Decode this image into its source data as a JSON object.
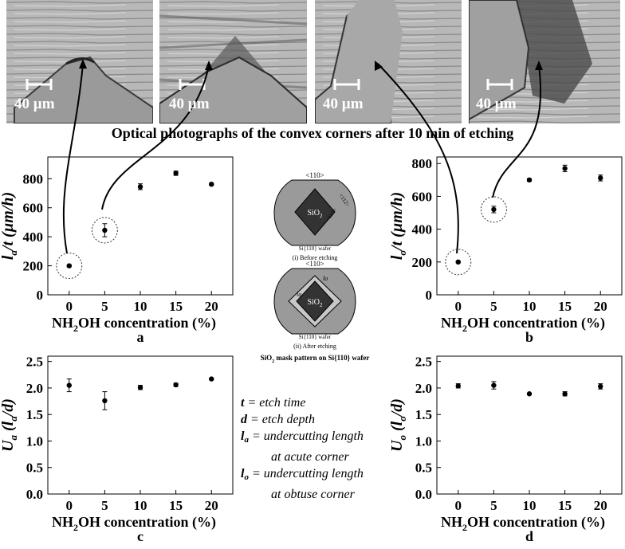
{
  "photos": {
    "scale_label": "40 µm",
    "caption": "Optical photographs of the convex corners after 10 min of etching"
  },
  "colors": {
    "axis": "#000000",
    "marker": "#000000",
    "circle": "#333333"
  },
  "chart_data": [
    {
      "id": "a",
      "type": "scatter",
      "panel_label": "a",
      "xlabel_pre": "NH",
      "xlabel_sub": "2",
      "xlabel_post": "OH concentration (%)",
      "ylabel": "la/t (µm/h)",
      "ylabel_main": "l",
      "ylabel_sub": "a",
      "ylabel_post": "/t (µm/h)",
      "xlim": [
        -3,
        23
      ],
      "ylim": [
        0,
        950
      ],
      "xticks": [
        0,
        5,
        10,
        15,
        20
      ],
      "xtick_labels": [
        "0",
        "5",
        "10",
        "15",
        "20"
      ],
      "yticks": [
        0,
        200,
        400,
        600,
        800
      ],
      "ytick_labels": [
        "0",
        "200",
        "400",
        "600",
        "800"
      ],
      "x": [
        0,
        5,
        10,
        15,
        20
      ],
      "y": [
        200,
        445,
        745,
        838,
        762
      ],
      "err": [
        8,
        45,
        20,
        15,
        8
      ],
      "highlight": [
        0,
        5
      ]
    },
    {
      "id": "b",
      "type": "scatter",
      "panel_label": "b",
      "xlabel_pre": "NH",
      "xlabel_sub": "2",
      "xlabel_post": "OH concentration (%)",
      "ylabel": "lo/t (µm/h)",
      "ylabel_main": "l",
      "ylabel_sub": "o",
      "ylabel_post": "/t (µm/h)",
      "xlim": [
        -3,
        23
      ],
      "ylim": [
        0,
        840
      ],
      "xticks": [
        0,
        5,
        10,
        15,
        20
      ],
      "xtick_labels": [
        "0",
        "5",
        "10",
        "15",
        "20"
      ],
      "yticks": [
        0,
        200,
        400,
        600,
        800
      ],
      "ytick_labels": [
        "0",
        "200",
        "400",
        "600",
        "800"
      ],
      "x": [
        0,
        5,
        10,
        15,
        20
      ],
      "y": [
        200,
        520,
        700,
        770,
        712
      ],
      "err": [
        6,
        20,
        8,
        20,
        18
      ],
      "highlight": [
        0,
        5
      ]
    },
    {
      "id": "c",
      "type": "scatter",
      "panel_label": "c",
      "xlabel_pre": "NH",
      "xlabel_sub": "2",
      "xlabel_post": "OH concentration (%)",
      "ylabel": "Ua (la/d)",
      "ylabel_main": "U",
      "ylabel_sub": "a",
      "ylabel_post": " (l",
      "ylabel_sub2": "a",
      "ylabel_post2": "/d)",
      "xlim": [
        -3,
        23
      ],
      "ylim": [
        0,
        2.6
      ],
      "xticks": [
        0,
        5,
        10,
        15,
        20
      ],
      "xtick_labels": [
        "0",
        "5",
        "10",
        "15",
        "20"
      ],
      "yticks": [
        0,
        0.5,
        1.0,
        1.5,
        2.0,
        2.5
      ],
      "ytick_labels": [
        "0.0",
        "0.5",
        "1.0",
        "1.5",
        "2.0",
        "2.5"
      ],
      "x": [
        0,
        5,
        10,
        15,
        20
      ],
      "y": [
        2.05,
        1.76,
        2.01,
        2.06,
        2.17
      ],
      "err": [
        0.12,
        0.17,
        0.04,
        0.03,
        0.01
      ],
      "highlight": []
    },
    {
      "id": "d",
      "type": "scatter",
      "panel_label": "d",
      "xlabel_pre": "NH",
      "xlabel_sub": "2",
      "xlabel_post": "OH concentration (%)",
      "ylabel": "Uo (lo/d)",
      "ylabel_main": "U",
      "ylabel_sub": "o",
      "ylabel_post": " (l",
      "ylabel_sub2": "o",
      "ylabel_post2": "/d)",
      "xlim": [
        -3,
        23
      ],
      "ylim": [
        0,
        2.6
      ],
      "xticks": [
        0,
        5,
        10,
        15,
        20
      ],
      "xtick_labels": [
        "0",
        "5",
        "10",
        "15",
        "20"
      ],
      "yticks": [
        0,
        0.5,
        1.0,
        1.5,
        2.0,
        2.5
      ],
      "ytick_labels": [
        "0.0",
        "0.5",
        "1.0",
        "1.5",
        "2.0",
        "2.5"
      ],
      "x": [
        0,
        5,
        10,
        15,
        20
      ],
      "y": [
        2.04,
        2.05,
        1.89,
        1.89,
        2.03
      ],
      "err": [
        0.04,
        0.07,
        0.01,
        0.04,
        0.05
      ],
      "highlight": []
    }
  ],
  "diagram": {
    "dir_label": "<110>",
    "oxide_label": "SiO2",
    "oxide_main": "SiO",
    "oxide_sub": "2",
    "wafer_label": "Si{110} wafer",
    "dir_112": "<112>",
    "before_label": "(i) Before etching",
    "after_label": "(ii) After etching",
    "lo_label": "lo",
    "la_label": "la",
    "caption_main": "SiO",
    "caption_sub": "2",
    "caption_post": " mask pattern on Si{110} wafer"
  },
  "legend": {
    "t_sym": "t",
    "t_text": " = etch time",
    "d_sym": "d",
    "d_text": " = etch depth",
    "la_sym": "l",
    "la_sub": "a",
    "la_text": " = undercutting length",
    "la_text2": "at acute corner",
    "lo_sym": "l",
    "lo_sub": "o",
    "lo_text": " = undercutting length",
    "lo_text2": "at obtuse corner"
  }
}
